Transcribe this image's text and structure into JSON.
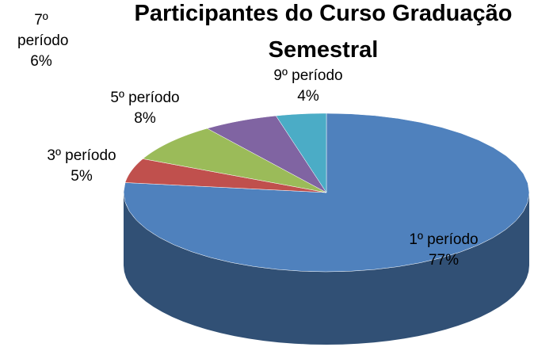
{
  "chart_data": {
    "type": "pie",
    "title": "Participantes do Curso Graduação Semestral",
    "categories": [
      "1º período",
      "3º período",
      "5º período",
      "7º período",
      "9º período"
    ],
    "values": [
      77,
      5,
      8,
      6,
      4
    ],
    "value_labels": [
      "77%",
      "5%",
      "8%",
      "6%",
      "4%"
    ],
    "colors": [
      "#4f81bd",
      "#c0504d",
      "#9bbb59",
      "#8064a2",
      "#4bacc6"
    ]
  }
}
